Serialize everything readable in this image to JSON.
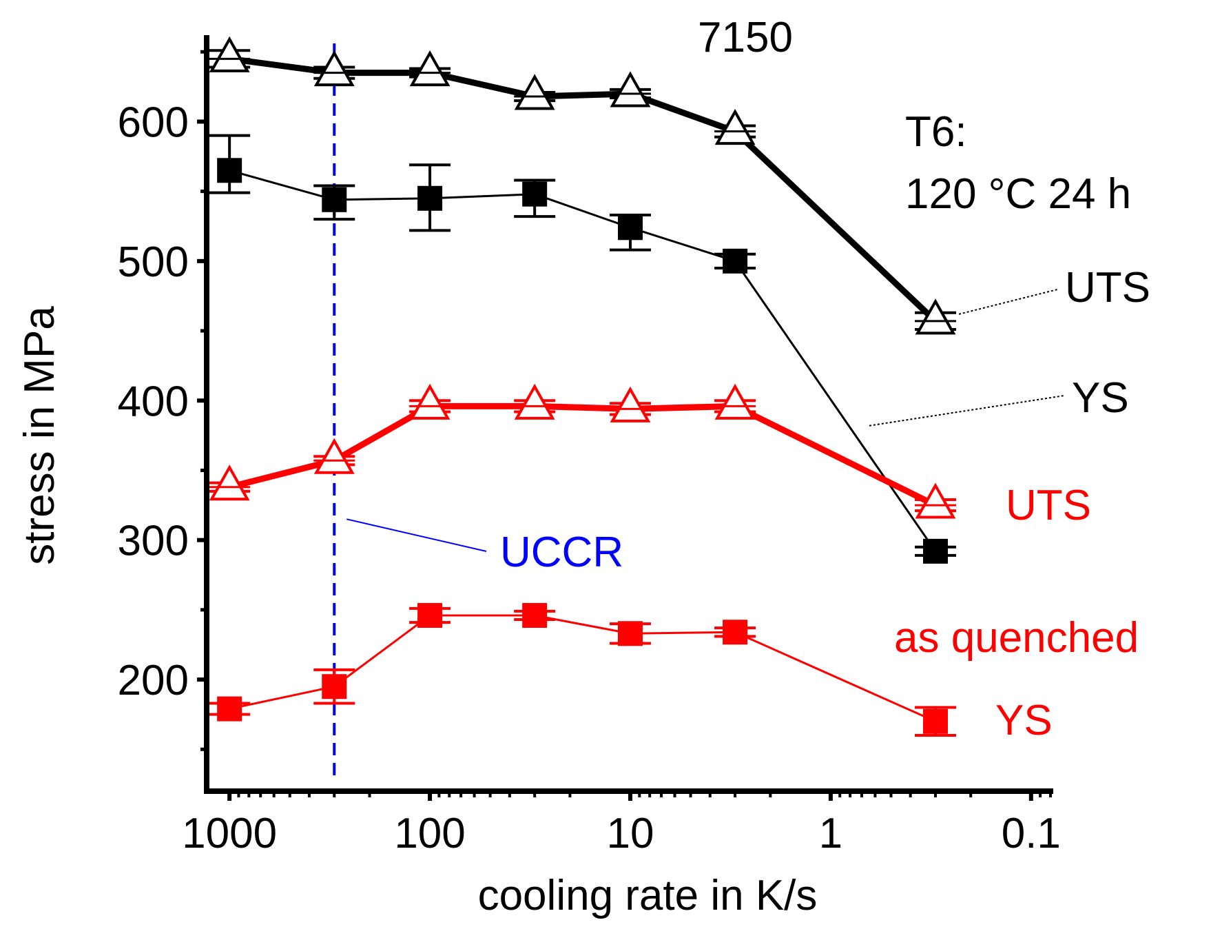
{
  "chart_data": {
    "type": "line",
    "title": "7150",
    "xlabel": "cooling rate in K/s",
    "ylabel": "stress in MPa",
    "x_scale": "log",
    "x_reversed": true,
    "xlim": [
      1300,
      0.08
    ],
    "ylim": [
      120,
      660
    ],
    "x_ticks": [
      1000,
      100,
      10,
      1,
      0.1
    ],
    "x_tick_labels": [
      "1000",
      "100",
      "10",
      "1",
      "0.1"
    ],
    "y_ticks": [
      200,
      300,
      400,
      500,
      600
    ],
    "y_tick_labels": [
      "200",
      "300",
      "400",
      "500",
      "600"
    ],
    "grid": false,
    "x": [
      1000,
      300,
      100,
      30,
      10,
      3,
      0.3
    ],
    "series": [
      {
        "name": "UTS",
        "group": "T6",
        "marker": "open-triangle",
        "color": "#000000",
        "line": "thick",
        "values": [
          645,
          635,
          635,
          618,
          620,
          593,
          457
        ],
        "errors": [
          6,
          4,
          3,
          3,
          3,
          4,
          6
        ]
      },
      {
        "name": "YS",
        "group": "T6",
        "marker": "filled-square",
        "color": "#000000",
        "line": "thin",
        "values": [
          565,
          544,
          545,
          548,
          524,
          500,
          292
        ],
        "errors": [
          [
            16,
            25
          ],
          [
            14,
            10
          ],
          [
            23,
            24
          ],
          [
            16,
            10
          ],
          [
            16,
            9
          ],
          [
            5,
            5
          ],
          [
            3,
            3
          ]
        ]
      },
      {
        "name": "UTS",
        "group": "as quenched",
        "marker": "open-triangle",
        "color": "#ff0000",
        "line": "thick",
        "values": [
          338,
          357,
          396,
          396,
          394,
          396,
          325
        ],
        "errors": [
          3,
          3,
          4,
          4,
          4,
          4,
          4
        ]
      },
      {
        "name": "YS",
        "group": "as quenched",
        "marker": "filled-square",
        "color": "#ff0000",
        "line": "thin",
        "values": [
          179,
          195,
          246,
          246,
          233,
          234,
          170
        ],
        "errors": [
          4,
          12,
          5,
          3,
          7,
          3,
          10
        ]
      }
    ],
    "reference_line": {
      "name": "UCCR",
      "x": 300,
      "color": "#0000ff",
      "style": "dashed"
    },
    "annotations": {
      "treatment_line1": "T6:",
      "treatment_line2": "120 °C 24 h",
      "t6_uts": "UTS",
      "t6_ys": "YS",
      "aq_uts": "UTS",
      "aq_group": "as quenched",
      "aq_ys": "YS",
      "uccr": "UCCR"
    }
  }
}
